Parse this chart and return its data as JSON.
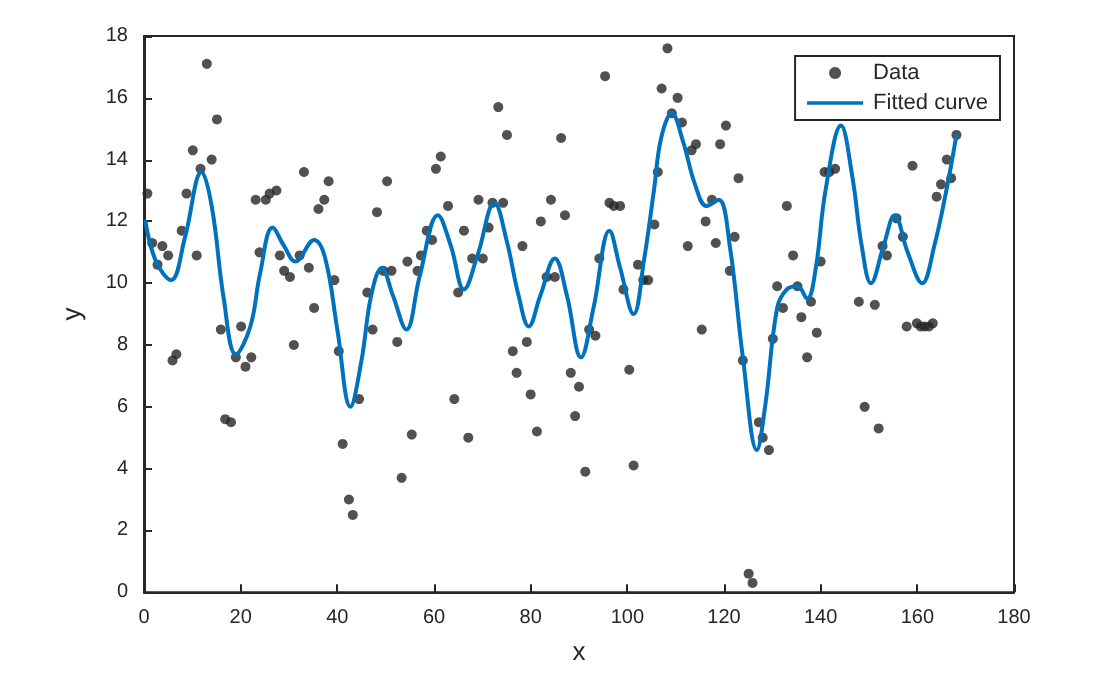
{
  "chart_data": {
    "type": "scatter",
    "xlabel": "x",
    "ylabel": "y",
    "xlim": [
      0,
      180
    ],
    "xticks": [
      0,
      20,
      40,
      60,
      80,
      100,
      120,
      140,
      160,
      180
    ],
    "ylim": [
      0,
      18
    ],
    "yticks": [
      0,
      2,
      4,
      6,
      8,
      10,
      12,
      14,
      16,
      18
    ],
    "grid": false,
    "legend": "top right",
    "series": [
      {
        "name": "Data",
        "color": "#262626",
        "marker": "circle",
        "x": [
          0.7,
          1.7,
          2.8,
          3.8,
          5.0,
          5.9,
          6.7,
          7.8,
          8.8,
          10.1,
          10.9,
          11.7,
          13.0,
          14.0,
          15.1,
          15.9,
          16.8,
          18.0,
          19.0,
          20.1,
          21.0,
          22.2,
          23.1,
          23.9,
          25.2,
          26.0,
          27.4,
          28.1,
          29.0,
          30.2,
          31.0,
          32.2,
          33.1,
          34.1,
          35.2,
          36.1,
          37.3,
          38.2,
          39.4,
          40.3,
          41.1,
          42.4,
          43.2,
          44.5,
          46.2,
          47.3,
          48.2,
          49.5,
          50.3,
          51.2,
          52.4,
          53.3,
          54.5,
          55.4,
          56.6,
          57.3,
          58.5,
          59.6,
          60.4,
          61.4,
          62.9,
          64.2,
          65.0,
          66.2,
          67.1,
          67.9,
          69.2,
          70.1,
          71.3,
          72.1,
          73.3,
          74.3,
          75.1,
          76.3,
          77.1,
          78.3,
          79.2,
          80.0,
          81.3,
          82.1,
          83.3,
          84.2,
          85.0,
          86.3,
          87.1,
          88.3,
          89.2,
          90.0,
          91.3,
          92.1,
          93.4,
          94.2,
          95.4,
          96.3,
          97.2,
          98.5,
          99.2,
          100.4,
          101.3,
          102.2,
          103.3,
          104.3,
          105.6,
          106.3,
          107.1,
          108.3,
          109.2,
          110.4,
          111.3,
          112.5,
          113.3,
          114.2,
          115.4,
          116.2,
          117.5,
          118.3,
          119.2,
          120.4,
          121.2,
          122.2,
          123.0,
          123.9,
          125.1,
          125.9,
          127.2,
          128.0,
          129.3,
          130.1,
          131.0,
          132.2,
          133.0,
          134.3,
          135.2,
          136.0,
          137.2,
          138.0,
          139.2,
          140.0,
          140.8,
          141.8,
          143.0,
          147.9,
          149.1,
          151.2,
          152.0,
          152.8,
          153.7,
          155.7,
          157.0,
          157.8,
          159.0,
          159.9,
          160.7,
          161.5,
          162.4,
          163.2,
          164.0,
          164.9,
          166.1,
          167.0,
          168.1
        ],
        "values": [
          12.9,
          11.3,
          10.6,
          11.2,
          10.9,
          7.5,
          7.7,
          11.7,
          12.9,
          14.3,
          10.9,
          13.7,
          17.1,
          14.0,
          15.3,
          8.5,
          5.6,
          5.5,
          7.6,
          8.6,
          7.3,
          7.6,
          12.7,
          11.0,
          12.7,
          12.9,
          13.0,
          10.9,
          10.4,
          10.2,
          8.0,
          10.9,
          13.6,
          10.5,
          9.2,
          12.4,
          12.7,
          13.3,
          10.1,
          7.8,
          4.8,
          3.0,
          2.5,
          6.25,
          9.7,
          8.5,
          12.3,
          10.4,
          13.3,
          10.4,
          8.1,
          3.7,
          10.7,
          5.1,
          10.4,
          10.9,
          11.7,
          11.4,
          13.7,
          14.1,
          12.5,
          6.25,
          9.7,
          11.7,
          5.0,
          10.8,
          12.7,
          10.8,
          11.8,
          12.6,
          15.7,
          12.6,
          14.8,
          7.8,
          7.1,
          11.2,
          8.1,
          6.4,
          5.2,
          12.0,
          10.2,
          12.7,
          10.2,
          14.7,
          12.2,
          7.1,
          5.7,
          6.65,
          3.9,
          8.5,
          8.3,
          10.8,
          16.7,
          12.6,
          12.5,
          12.5,
          9.8,
          7.2,
          4.1,
          10.6,
          10.1,
          10.1,
          11.9,
          13.6,
          16.3,
          17.6,
          15.5,
          16.0,
          15.2,
          11.2,
          14.3,
          14.5,
          8.5,
          12.0,
          12.7,
          11.3,
          14.5,
          15.1,
          10.4,
          11.5,
          13.4,
          7.5,
          0.6,
          0.3,
          5.5,
          5.0,
          4.6,
          8.2,
          9.9,
          9.2,
          12.5,
          10.9,
          9.9,
          8.9,
          7.6,
          9.4,
          8.4,
          10.7,
          13.6,
          13.6,
          13.7,
          9.4,
          6.0,
          9.3,
          5.3,
          11.2,
          10.9,
          12.1,
          11.5,
          8.6,
          13.8,
          8.7,
          8.6,
          8.6,
          8.6,
          8.7,
          12.8,
          13.2,
          14.0,
          13.4,
          14.8
        ]
      },
      {
        "name": "Fitted curve",
        "type": "line",
        "color": "#0072bd",
        "marker": "none",
        "line_style": "solid",
        "x": [
          0.3,
          2.5,
          5.6,
          8.5,
          11.9,
          14,
          16.5,
          19,
          22,
          24,
          26.6,
          29,
          31.3,
          35.2,
          37.5,
          40,
          42.7,
          45,
          47,
          49.2,
          51.5,
          54.3,
          57,
          60.8,
          63.5,
          66.2,
          69,
          72.5,
          75,
          77.5,
          79.6,
          82,
          85,
          87.5,
          90.4,
          93,
          96.3,
          98.5,
          101.3,
          103.5,
          105.5,
          107,
          109.2,
          111.5,
          114,
          116.4,
          118.9,
          121.2,
          123.9,
          126.8,
          128.5,
          131,
          133,
          135.2,
          137.2,
          139,
          141,
          144.2,
          146.5,
          148.5,
          150.4,
          153,
          155.3,
          158,
          161,
          163.5,
          166,
          168.1
        ],
        "values": [
          12.0,
          10.7,
          10.1,
          11.5,
          13.6,
          12.5,
          9.5,
          7.7,
          8.6,
          10.3,
          11.8,
          11.2,
          10.7,
          11.4,
          10.8,
          8.5,
          6.0,
          7.5,
          9.6,
          10.5,
          9.6,
          8.5,
          10.2,
          12.2,
          11.2,
          9.8,
          10.9,
          12.6,
          11.4,
          9.6,
          8.6,
          9.6,
          10.8,
          9.6,
          7.6,
          9.2,
          11.7,
          10.5,
          9.0,
          10.8,
          13.0,
          14.7,
          15.5,
          14.6,
          13.2,
          12.5,
          12.7,
          11.2,
          7.6,
          4.6,
          6.0,
          9.2,
          9.8,
          9.9,
          9.5,
          10.5,
          13.0,
          15.1,
          13.5,
          11.2,
          10.0,
          11.2,
          12.2,
          11.0,
          10.0,
          11.2,
          13.0,
          14.8
        ]
      }
    ]
  }
}
